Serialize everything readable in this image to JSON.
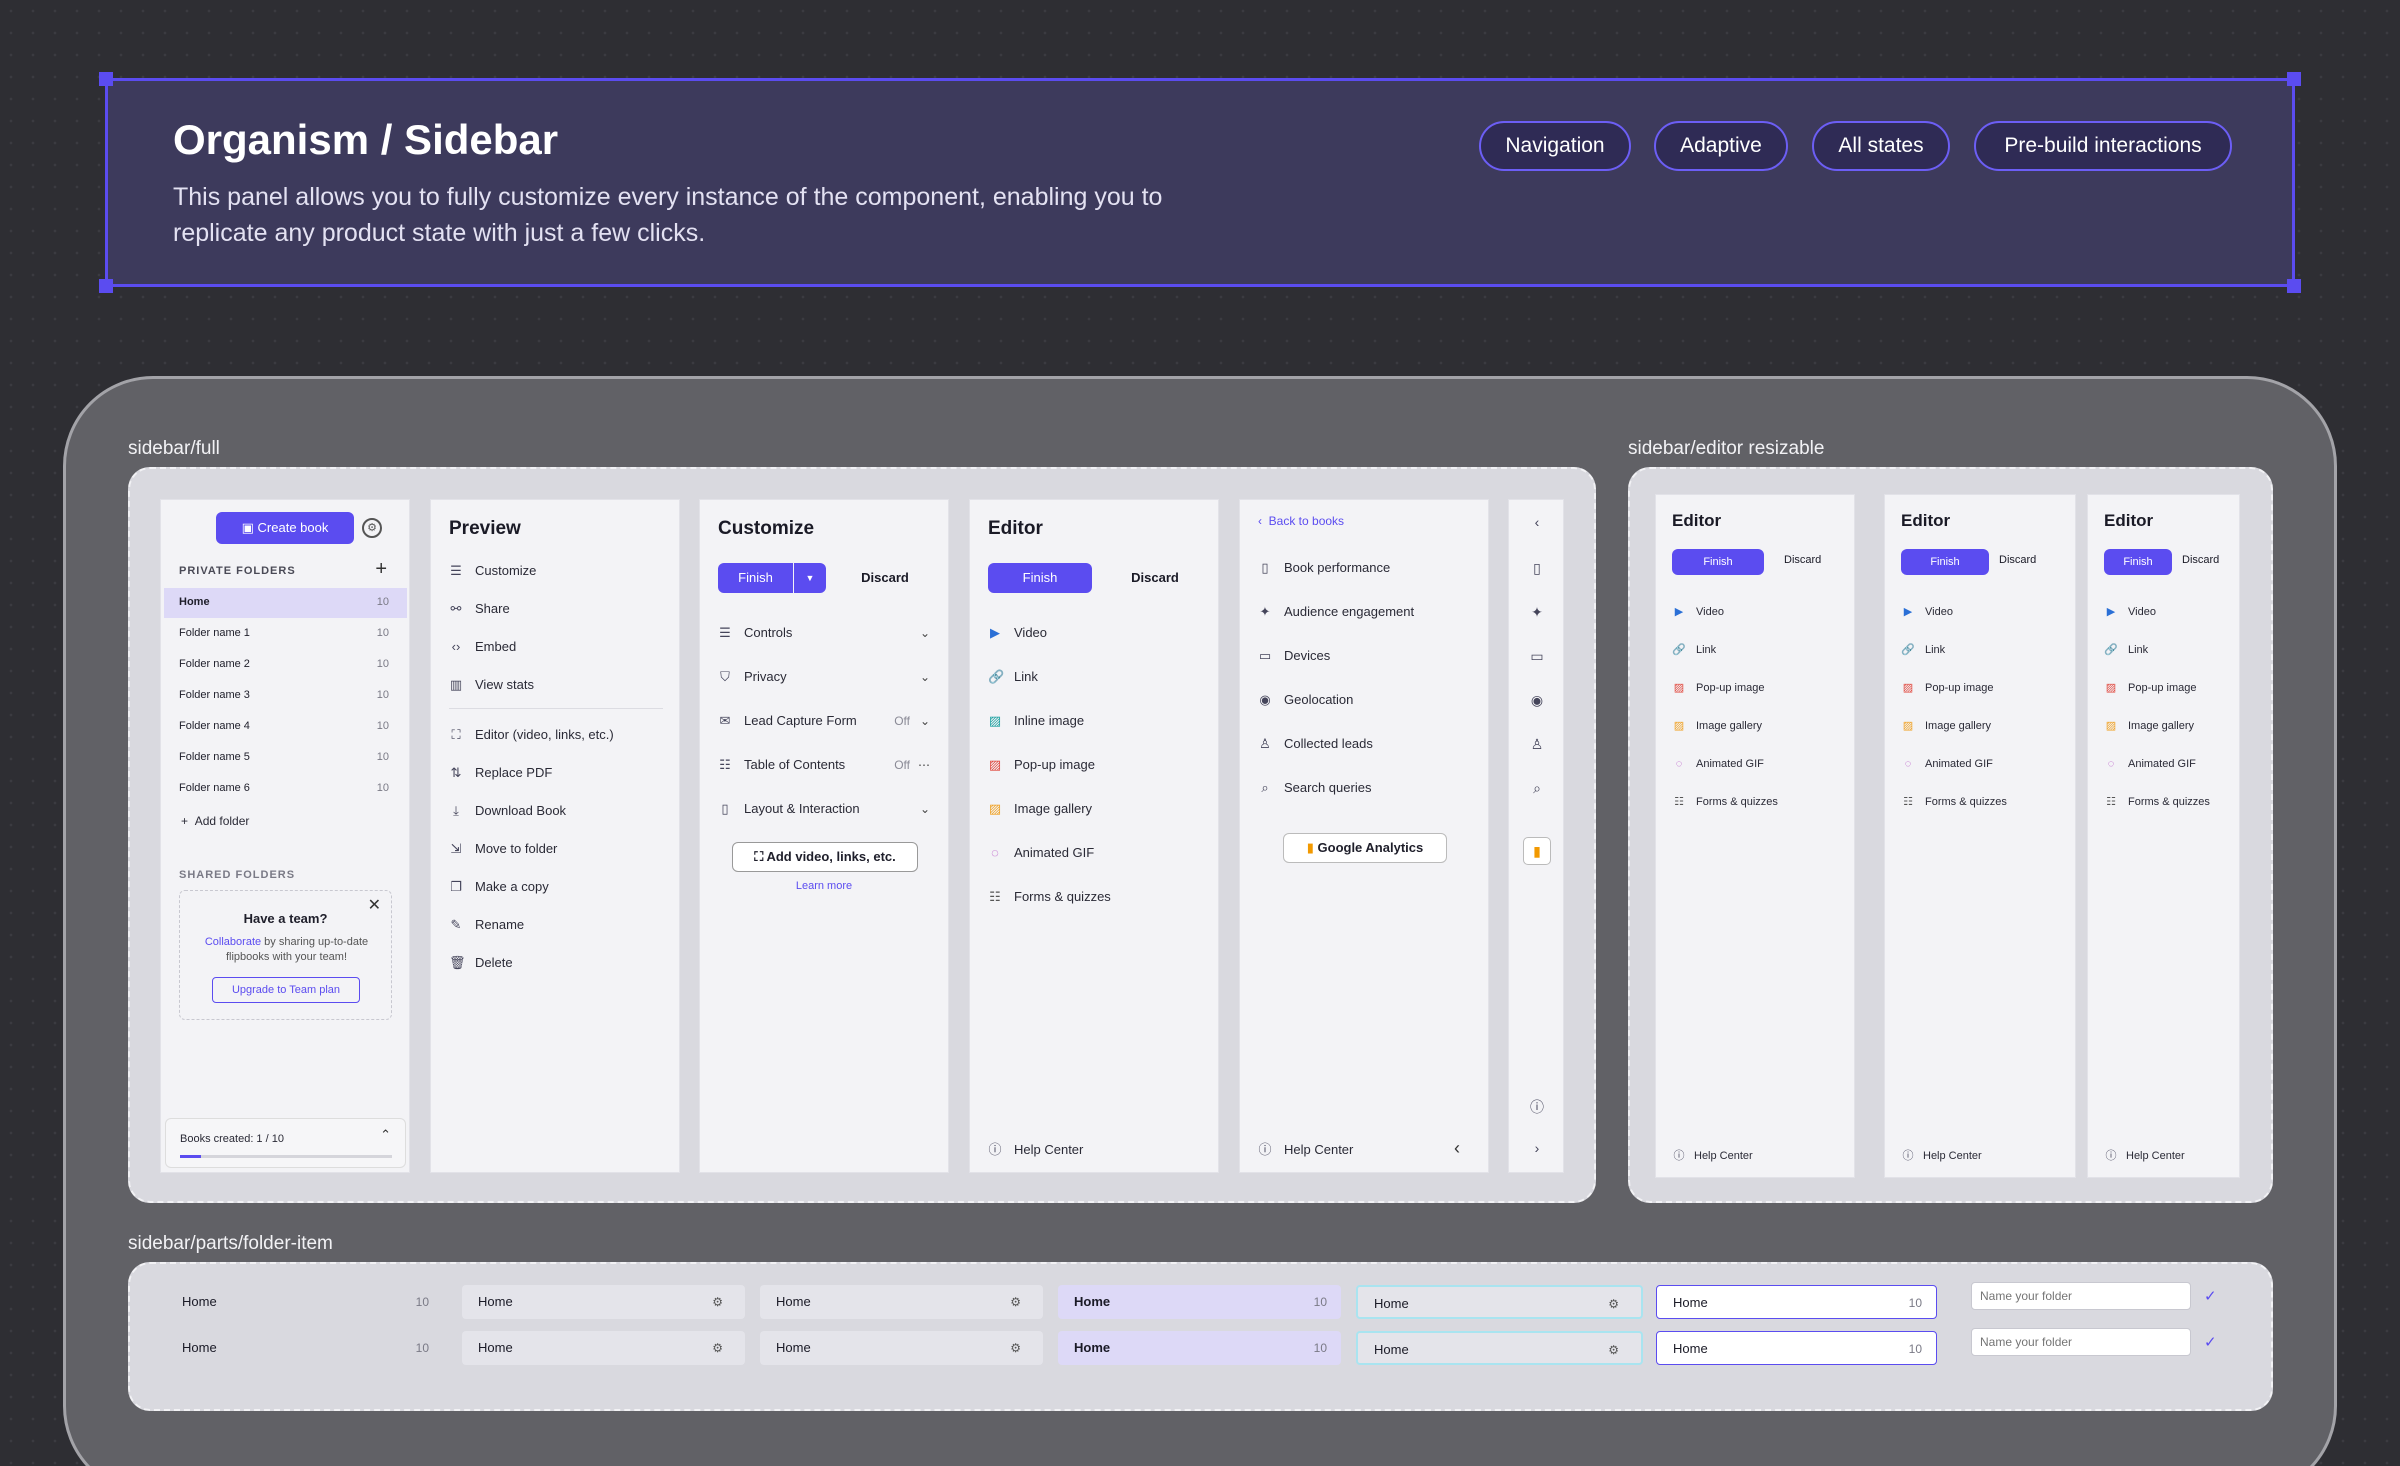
{
  "header": {
    "title": "Organism / Sidebar",
    "description": "This panel allows you to fully customize every instance of the component, enabling you to replicate any product state with just a few clicks.",
    "tags": [
      "Navigation",
      "Adaptive",
      "All states",
      "Pre-build interactions"
    ]
  },
  "sections": {
    "full": "sidebar/full",
    "resizable": "sidebar/editor resizable",
    "folder_item": "sidebar/parts/folder-item"
  },
  "library": {
    "create_book": "Create book",
    "private_folders": "PRIVATE FOLDERS",
    "folders": [
      {
        "name": "Home",
        "count": "10"
      },
      {
        "name": "Folder name 1",
        "count": "10"
      },
      {
        "name": "Folder name 2",
        "count": "10"
      },
      {
        "name": "Folder name 3",
        "count": "10"
      },
      {
        "name": "Folder name 4",
        "count": "10"
      },
      {
        "name": "Folder name 5",
        "count": "10"
      },
      {
        "name": "Folder name 6",
        "count": "10"
      }
    ],
    "add_folder": "Add folder",
    "shared_folders": "SHARED FOLDERS",
    "team_title": "Have a team?",
    "team_link": "Collaborate",
    "team_text": " by sharing up-to-date flipbooks with your team!",
    "upgrade": "Upgrade to Team plan",
    "books_created": "Books created: 1 / 10",
    "books_progress": 0.1
  },
  "preview": {
    "title": "Preview",
    "items": [
      {
        "label": "Customize",
        "icon": "sliders-icon"
      },
      {
        "label": "Share",
        "icon": "share-icon"
      },
      {
        "label": "Embed",
        "icon": "code-icon"
      },
      {
        "label": "View stats",
        "icon": "chart-icon"
      },
      {
        "label": "Editor (video, links, etc.)",
        "icon": "frame-icon"
      },
      {
        "label": "Replace PDF",
        "icon": "swap-icon"
      },
      {
        "label": "Download Book",
        "icon": "download-icon"
      },
      {
        "label": "Move to folder",
        "icon": "move-icon"
      },
      {
        "label": "Make a copy",
        "icon": "copy-icon"
      },
      {
        "label": "Rename",
        "icon": "pencil-icon"
      },
      {
        "label": "Delete",
        "icon": "trash-icon"
      }
    ]
  },
  "customize": {
    "title": "Customize",
    "finish": "Finish",
    "discard": "Discard",
    "items": [
      {
        "label": "Controls",
        "value": ""
      },
      {
        "label": "Privacy",
        "value": ""
      },
      {
        "label": "Lead Capture Form",
        "value": "Off"
      },
      {
        "label": "Table of Contents",
        "value": "Off"
      },
      {
        "label": "Layout & Interaction",
        "value": ""
      }
    ],
    "add_btn": "Add video, links, etc.",
    "learn_more": "Learn more"
  },
  "editor": {
    "title": "Editor",
    "finish": "Finish",
    "discard": "Discard",
    "items": [
      "Video",
      "Link",
      "Inline image",
      "Pop-up image",
      "Image gallery",
      "Animated GIF",
      "Forms & quizzes"
    ],
    "help": "Help Center"
  },
  "stats": {
    "back": "Back to books",
    "items": [
      "Book performance",
      "Audience engagement",
      "Devices",
      "Geolocation",
      "Collected leads",
      "Search queries"
    ],
    "ga": "Google Analytics",
    "help": "Help Center"
  },
  "resizable": {
    "title": "Editor",
    "finish": "Finish",
    "discard": "Discard",
    "items": [
      "Video",
      "Link",
      "Pop-up image",
      "Image gallery",
      "Animated GIF",
      "Forms & quizzes"
    ],
    "help": "Help Center"
  },
  "folder_item": {
    "name": "Home",
    "count": "10",
    "placeholder": "Name your folder"
  },
  "colors": {
    "accent": "#5b4cf0",
    "header_bg": "#3d3a5c"
  }
}
